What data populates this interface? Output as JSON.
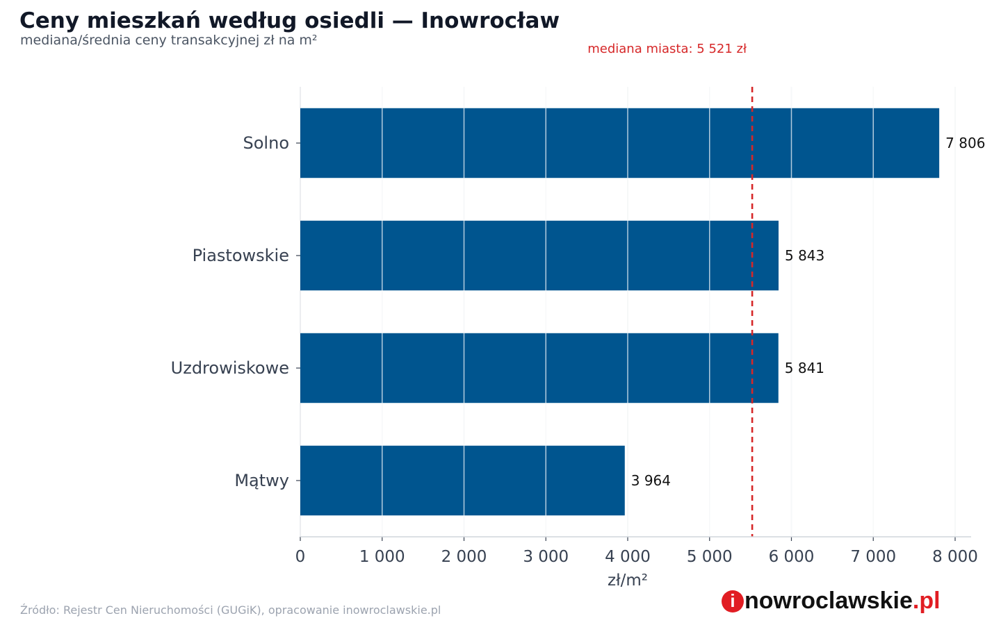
{
  "header": {
    "title": "Ceny mieszkań według osiedli — Inowrocław",
    "subtitle": "mediana/średnia ceny transakcyjnej zł na m²"
  },
  "chart_data": {
    "type": "bar",
    "orientation": "horizontal",
    "categories": [
      "Solno",
      "Piastowskie",
      "Uzdrowiskowe",
      "Mątwy"
    ],
    "values": [
      7806,
      5843,
      5841,
      3964
    ],
    "value_labels": [
      "7 806",
      "5 843",
      "5 841",
      "3 964"
    ],
    "xlabel": "zł/m²",
    "ylabel": "",
    "xlim": [
      0,
      8200
    ],
    "xticks": [
      0,
      1000,
      2000,
      3000,
      4000,
      5000,
      6000,
      7000,
      8000
    ],
    "xtick_labels": [
      "0",
      "1 000",
      "2 000",
      "3 000",
      "4 000",
      "5 000",
      "6 000",
      "7 000",
      "8 000"
    ],
    "grid": "vertical",
    "bar_color": "#00558f",
    "reference_line": {
      "value": 5521,
      "label": "mediana miasta: 5 521 zł",
      "color": "#d62728",
      "style": "dashed"
    }
  },
  "footer": {
    "source": "Źródło: Rejestr Cen Nieruchomości (GUGiK), opracowanie inowroclawskie.pl",
    "brand_icon_letter": "i",
    "brand_main": "nowroclawskie",
    "brand_tld": ".pl"
  }
}
